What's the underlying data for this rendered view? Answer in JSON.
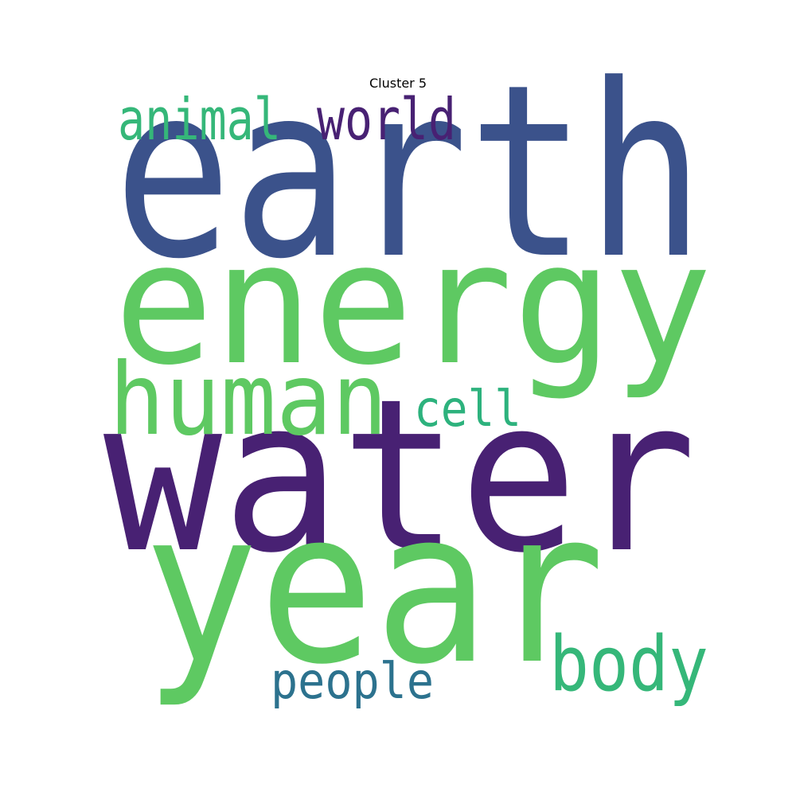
{
  "title": "Cluster 5",
  "chart_data": {
    "type": "wordcloud",
    "title": "Cluster 5",
    "words": [
      {
        "text": "earth",
        "color": "#3b528b"
      },
      {
        "text": "energy",
        "color": "#5ec962"
      },
      {
        "text": "water",
        "color": "#482173"
      },
      {
        "text": "year",
        "color": "#5ec962"
      },
      {
        "text": "human",
        "color": "#5ec962"
      },
      {
        "text": "animal",
        "color": "#35b779"
      },
      {
        "text": "world",
        "color": "#482173"
      },
      {
        "text": "cell",
        "color": "#2db27d"
      },
      {
        "text": "body",
        "color": "#35b779"
      },
      {
        "text": "people",
        "color": "#2c728e"
      }
    ]
  }
}
